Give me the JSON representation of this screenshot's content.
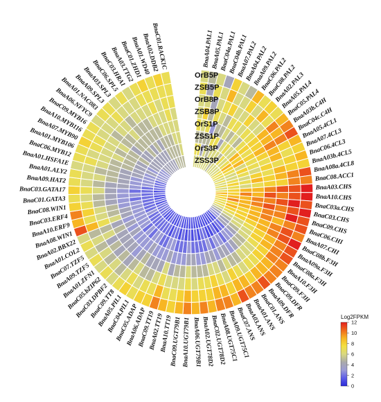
{
  "chart_data": {
    "type": "heatmap",
    "layout": "circular",
    "rows": [
      "OrB5P",
      "ZSB5P",
      "OrB8P",
      "ZSB8P",
      "OrS1P",
      "ZSS1P",
      "OrS3P",
      "ZSS3P"
    ],
    "genes": [
      "BnaA04.PAL1",
      "BnaA05.PAL1",
      "BnaC04a.PAL1",
      "BnaC04b.PAL1",
      "BnaA07.PAL2",
      "BnaA04.PAL2",
      "BnaA09.PAL2",
      "BnaC06.PAL2",
      "BnaC08.PAL2",
      "BnaA02.PAL3",
      "BnaA05.PAL4",
      "BnaC05.PAL4",
      "BnaA03b.C4H",
      "BnaC04c.C4H",
      "BnaA05.4CL1",
      "BnaA07.4CL3",
      "BnaC06.4CL3",
      "BnaA03b.4CL5",
      "BnaA08a.4CL8",
      "BnaC08.ACC1",
      "BnaA03.CHS",
      "BnaA10.CHS",
      "BnaC03a.CHS",
      "BnaC03.CHS",
      "BnaC09.CHS",
      "BnaC06.CHI",
      "BnaA07.CHI",
      "BnaC08b.F3H",
      "BnaA09a.F3H",
      "BnaC08a.F3H",
      "BnaA10.F3H",
      "BnaC09.F3H",
      "BnaC09.DFR",
      "BnaA09.DFR",
      "BnaC01.ANS",
      "BnaA01.ANS",
      "BnaA03.ANS",
      "BnaC07.ANS",
      "BnaA09.UGT75C1",
      "BnaA08.UGT75C1",
      "BnaC02.UGT78D2",
      "BnaA02.UGT78D2",
      "BnaA06.UGT79B1",
      "BnaA10.UGT79B1",
      "BnaC09.UGT79B1",
      "BnaA10.TT19",
      "BnaA02.TT19",
      "BnaC09.TT19",
      "BnaA06.ADAP",
      "BnaC05.ADAP",
      "BnaC04.PIL1",
      "BnaA05.PIL1",
      "BnaC09.TT8",
      "BnaC03.DPBF2",
      "BnaC05.bZIP62",
      "BnaA01.ZFN1",
      "BnaA09.TZF5",
      "BnaC07.TZF5",
      "BnaA01.COL2",
      "BnaA02.BBX22",
      "BnaA08.WIN1",
      "BnaA10.ERF9",
      "BnaC03.ERF4",
      "BnaC08.WIN1",
      "BnaC01.GATA3",
      "BnaC03.GATA17",
      "BnaA09.HAT2",
      "BnaA01.ALY2",
      "BnaA01.HSFA1E",
      "BnaC06.MYB12",
      "BnaA01.MYB106",
      "BnaA07.MYB90",
      "BnaA10.MYB116",
      "BnaC09.MYB16",
      "BnaA06.NFYC9",
      "BnaA01.NAC083",
      "BnaA09.SPL3",
      "BnaA03.SPL3",
      "BnaC06.SPL5",
      "BnaC03.HRA1",
      "BnaA03.TTG2",
      "BnaC01.ZHD1",
      "BnaA01.WD40",
      "BnaA02.DDB2",
      "BnaC01.RACK1C"
    ],
    "legend": {
      "title": "Log2FPKM",
      "min": 0,
      "max": 12,
      "ticks": [
        0,
        2,
        4,
        6,
        8,
        10,
        12
      ],
      "colors": [
        "#2b2bd9",
        "#5c5ce8",
        "#9b9bd6",
        "#aaaaaa",
        "#d8d880",
        "#f3e040",
        "#f7b623",
        "#f06a1b",
        "#e21f1f"
      ]
    },
    "values": [
      [
        6,
        7,
        6,
        6,
        7,
        5,
        7,
        6
      ],
      [
        5,
        4,
        6,
        8,
        6,
        5,
        7,
        6
      ],
      [
        6,
        7,
        4,
        5,
        7,
        5,
        4,
        6
      ],
      [
        4,
        6,
        6,
        7,
        3,
        5,
        6,
        6
      ],
      [
        8,
        9,
        7,
        6,
        5,
        7,
        5,
        6
      ],
      [
        6,
        6,
        8,
        5,
        5,
        7,
        6,
        6
      ],
      [
        5,
        6,
        6,
        7,
        6,
        4,
        6,
        6
      ],
      [
        9,
        8,
        6,
        7,
        5,
        6,
        6,
        5
      ],
      [
        7,
        6,
        8,
        6,
        6,
        7,
        5,
        6
      ],
      [
        8,
        9,
        6,
        7,
        5,
        6,
        7,
        6
      ],
      [
        7,
        7,
        6,
        7,
        7,
        6,
        6,
        6
      ],
      [
        9,
        10,
        9,
        8,
        8,
        9,
        7,
        6
      ],
      [
        10,
        9,
        9,
        8,
        7,
        8,
        9,
        7
      ],
      [
        11,
        10,
        10,
        9,
        8,
        9,
        8,
        7
      ],
      [
        9,
        8,
        9,
        8,
        7,
        6,
        7,
        7
      ],
      [
        8,
        7,
        9,
        7,
        7,
        8,
        6,
        6
      ],
      [
        9,
        8,
        7,
        8,
        6,
        7,
        6,
        7
      ],
      [
        8,
        8,
        9,
        7,
        8,
        6,
        7,
        6
      ],
      [
        11,
        10,
        9,
        8,
        9,
        7,
        8,
        7
      ],
      [
        10,
        10,
        8,
        8,
        7,
        6,
        7,
        6
      ],
      [
        12,
        11,
        11,
        10,
        9,
        9,
        8,
        7
      ],
      [
        12,
        11,
        10,
        11,
        9,
        10,
        8,
        9
      ],
      [
        11,
        12,
        11,
        10,
        10,
        9,
        9,
        8
      ],
      [
        12,
        11,
        10,
        11,
        10,
        9,
        10,
        8
      ],
      [
        11,
        12,
        10,
        10,
        9,
        9,
        8,
        7
      ],
      [
        11,
        10,
        9,
        10,
        9,
        8,
        9,
        7
      ],
      [
        10,
        11,
        10,
        9,
        9,
        8,
        8,
        7
      ],
      [
        12,
        11,
        10,
        9,
        8,
        8,
        7,
        6
      ],
      [
        11,
        10,
        9,
        8,
        7,
        6,
        6,
        5
      ],
      [
        11,
        10,
        9,
        8,
        6,
        6,
        5,
        4
      ],
      [
        10,
        10,
        8,
        7,
        6,
        5,
        4,
        3
      ],
      [
        10,
        9,
        8,
        6,
        5,
        4,
        4,
        3
      ],
      [
        10,
        9,
        7,
        6,
        5,
        3,
        2,
        1
      ],
      [
        11,
        9,
        7,
        6,
        4,
        3,
        2,
        1
      ],
      [
        10,
        8,
        6,
        5,
        3,
        2,
        1,
        1
      ],
      [
        10,
        9,
        7,
        5,
        4,
        3,
        2,
        1
      ],
      [
        11,
        9,
        8,
        6,
        4,
        3,
        1,
        1
      ],
      [
        9,
        8,
        6,
        5,
        3,
        2,
        1,
        1
      ],
      [
        10,
        9,
        7,
        6,
        4,
        3,
        2,
        1
      ],
      [
        10,
        9,
        8,
        6,
        4,
        2,
        2,
        1
      ],
      [
        9,
        8,
        7,
        5,
        3,
        2,
        1,
        1
      ],
      [
        10,
        8,
        7,
        5,
        3,
        2,
        2,
        1
      ],
      [
        9,
        8,
        6,
        5,
        4,
        2,
        1,
        1
      ],
      [
        10,
        9,
        7,
        6,
        4,
        3,
        2,
        1
      ],
      [
        9,
        8,
        6,
        5,
        3,
        2,
        1,
        1
      ],
      [
        8,
        7,
        6,
        5,
        3,
        2,
        2,
        1
      ],
      [
        9,
        7,
        6,
        4,
        3,
        2,
        1,
        1
      ],
      [
        10,
        9,
        7,
        6,
        4,
        3,
        2,
        2
      ],
      [
        8,
        7,
        6,
        4,
        3,
        3,
        2,
        1
      ],
      [
        8,
        7,
        5,
        4,
        3,
        2,
        1,
        1
      ],
      [
        7,
        6,
        5,
        4,
        3,
        2,
        2,
        1
      ],
      [
        8,
        7,
        6,
        5,
        4,
        3,
        2,
        2
      ],
      [
        7,
        6,
        5,
        4,
        3,
        3,
        2,
        1
      ],
      [
        6,
        5,
        4,
        3,
        3,
        2,
        2,
        1
      ],
      [
        7,
        6,
        5,
        4,
        3,
        3,
        2,
        1
      ],
      [
        6,
        5,
        4,
        4,
        3,
        2,
        2,
        2
      ],
      [
        7,
        6,
        5,
        4,
        4,
        3,
        2,
        2
      ],
      [
        6,
        5,
        4,
        4,
        3,
        3,
        2,
        2
      ],
      [
        7,
        6,
        6,
        5,
        4,
        3,
        3,
        2
      ],
      [
        6,
        5,
        5,
        4,
        3,
        3,
        2,
        2
      ],
      [
        11,
        9,
        7,
        6,
        4,
        3,
        2,
        1
      ],
      [
        9,
        7,
        6,
        5,
        4,
        3,
        2,
        2
      ],
      [
        10,
        8,
        6,
        5,
        3,
        3,
        2,
        1
      ],
      [
        8,
        7,
        5,
        4,
        3,
        2,
        2,
        1
      ],
      [
        7,
        6,
        5,
        4,
        3,
        3,
        2,
        2
      ],
      [
        8,
        7,
        6,
        4,
        3,
        2,
        2,
        1
      ],
      [
        7,
        6,
        5,
        4,
        4,
        3,
        2,
        2
      ],
      [
        7,
        6,
        6,
        5,
        4,
        3,
        3,
        2
      ],
      [
        6,
        6,
        5,
        5,
        4,
        3,
        3,
        2
      ],
      [
        7,
        7,
        6,
        5,
        4,
        4,
        3,
        2
      ],
      [
        7,
        6,
        6,
        5,
        5,
        4,
        3,
        3
      ],
      [
        8,
        7,
        6,
        6,
        5,
        4,
        4,
        3
      ],
      [
        7,
        7,
        6,
        5,
        5,
        4,
        3,
        3
      ],
      [
        7,
        6,
        6,
        6,
        5,
        5,
        4,
        3
      ],
      [
        6,
        6,
        5,
        5,
        4,
        4,
        4,
        3
      ],
      [
        7,
        6,
        6,
        5,
        5,
        4,
        4,
        4
      ],
      [
        7,
        7,
        6,
        6,
        5,
        5,
        4,
        4
      ],
      [
        6,
        6,
        5,
        5,
        5,
        4,
        4,
        4
      ],
      [
        7,
        6,
        6,
        5,
        5,
        5,
        4,
        4
      ],
      [
        6,
        6,
        6,
        5,
        5,
        4,
        4,
        4
      ],
      [
        7,
        7,
        6,
        6,
        5,
        5,
        5,
        4
      ],
      [
        8,
        7,
        7,
        6,
        6,
        5,
        5,
        5
      ],
      [
        7,
        7,
        6,
        6,
        6,
        5,
        5,
        5
      ],
      [
        8,
        7,
        7,
        7,
        6,
        6,
        5,
        5
      ],
      [
        7,
        7,
        7,
        6,
        6,
        6,
        6,
        5
      ]
    ]
  }
}
